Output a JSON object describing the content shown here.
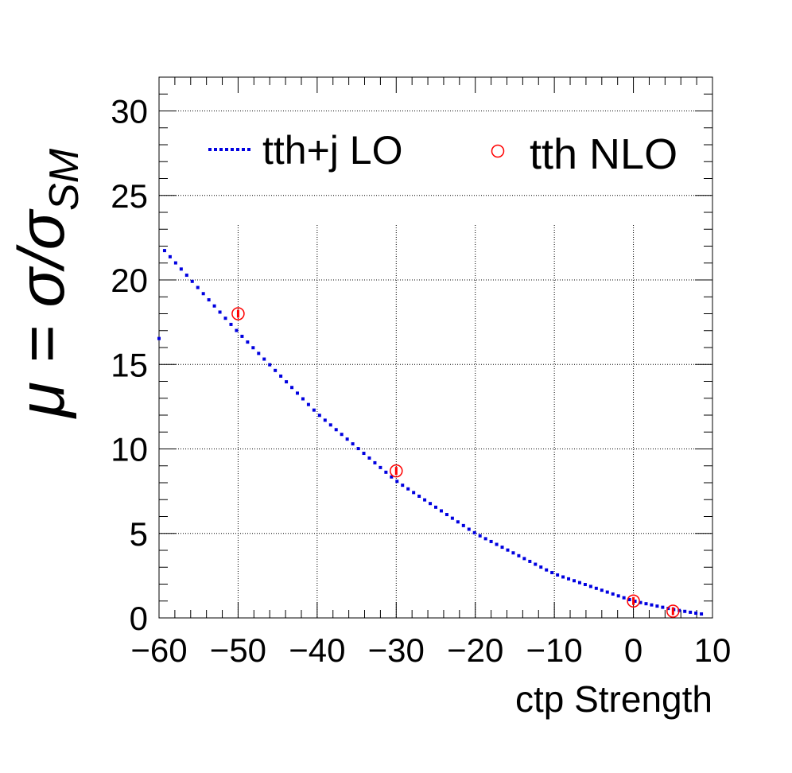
{
  "chart_data": {
    "type": "scatter",
    "xlabel": "ctp Strength",
    "ylabel": "μ = σ/σ",
    "ylabel_sub": "SM",
    "xlim": [
      -60,
      10
    ],
    "ylim": [
      0,
      32
    ],
    "x_ticks": [
      {
        "value": -60,
        "label": "−60"
      },
      {
        "value": -50,
        "label": "−50"
      },
      {
        "value": -40,
        "label": "−40"
      },
      {
        "value": -30,
        "label": "−30"
      },
      {
        "value": -20,
        "label": "−20"
      },
      {
        "value": -10,
        "label": "−10"
      },
      {
        "value": 0,
        "label": "0"
      },
      {
        "value": 10,
        "label": "10"
      }
    ],
    "y_ticks": [
      {
        "value": 0,
        "label": "0"
      },
      {
        "value": 5,
        "label": "5"
      },
      {
        "value": 10,
        "label": "10"
      },
      {
        "value": 15,
        "label": "15"
      },
      {
        "value": 20,
        "label": "20"
      },
      {
        "value": 25,
        "label": "25"
      },
      {
        "value": 30,
        "label": "30"
      }
    ],
    "grid": true,
    "legend_position": "top",
    "series": [
      {
        "name": "tth+j LO",
        "style": "dotted-line",
        "color": "#0000e0",
        "points": [
          [
            -60,
            22.1
          ],
          [
            -50,
            16.9
          ],
          [
            -40,
            12.1
          ],
          [
            -30,
            8.1
          ],
          [
            -20,
            5.0
          ],
          [
            -10,
            2.6
          ],
          [
            0,
            1.0
          ],
          [
            5,
            0.5
          ],
          [
            9,
            0.2
          ]
        ]
      },
      {
        "name": "tth NLO",
        "style": "open-circle",
        "color": "#ff0000",
        "points": [
          [
            -50,
            18.0
          ],
          [
            -30,
            8.7
          ],
          [
            0,
            1.0
          ],
          [
            5,
            0.4
          ]
        ]
      }
    ]
  }
}
